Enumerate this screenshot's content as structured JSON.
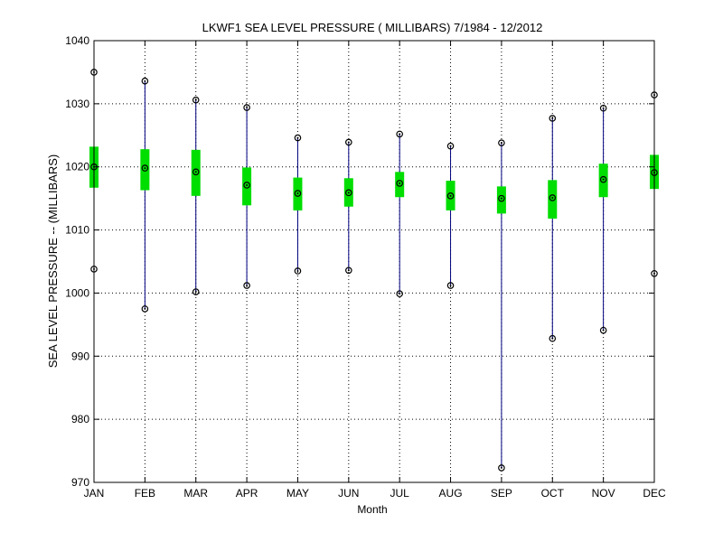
{
  "chart_data": {
    "type": "box",
    "title": "LKWF1  SEA LEVEL PRESSURE ( MILLIBARS) 7/1984 - 12/2012",
    "xlabel": "Month",
    "ylabel": "SEA LEVEL PRESSURE -- (MILLIBARS)",
    "categories": [
      "JAN",
      "FEB",
      "MAR",
      "APR",
      "MAY",
      "JUN",
      "JUL",
      "AUG",
      "SEP",
      "OCT",
      "NOV",
      "DEC"
    ],
    "ylim": [
      970,
      1040
    ],
    "yticks": [
      970,
      980,
      990,
      1000,
      1010,
      1020,
      1030,
      1040
    ],
    "grid": true,
    "series": [
      {
        "key": "max",
        "values": [
          1035.0,
          1033.6,
          1030.6,
          1029.4,
          1024.6,
          1023.9,
          1025.2,
          1023.3,
          1023.8,
          1027.7,
          1029.3,
          1031.4
        ]
      },
      {
        "key": "upper",
        "values": [
          1023.2,
          1022.8,
          1022.7,
          1019.9,
          1018.3,
          1018.2,
          1019.2,
          1017.8,
          1016.9,
          1017.9,
          1020.5,
          1021.9
        ]
      },
      {
        "key": "mean",
        "values": [
          1020.0,
          1019.8,
          1019.2,
          1017.1,
          1015.8,
          1015.9,
          1017.4,
          1015.4,
          1015.0,
          1015.1,
          1018.0,
          1019.1
        ]
      },
      {
        "key": "lower",
        "values": [
          1016.7,
          1016.3,
          1015.4,
          1013.9,
          1013.1,
          1013.7,
          1015.2,
          1013.1,
          1012.6,
          1011.8,
          1015.2,
          1016.5
        ]
      },
      {
        "key": "min",
        "values": [
          1003.8,
          997.5,
          1000.2,
          1001.2,
          1003.5,
          1003.6,
          999.9,
          1001.2,
          972.3,
          992.8,
          994.1,
          1003.1
        ]
      }
    ],
    "colors": {
      "whisker": "#000080",
      "box": "#00dd00",
      "marker": "#000000",
      "grid": "#000000",
      "axis": "#000000"
    }
  }
}
